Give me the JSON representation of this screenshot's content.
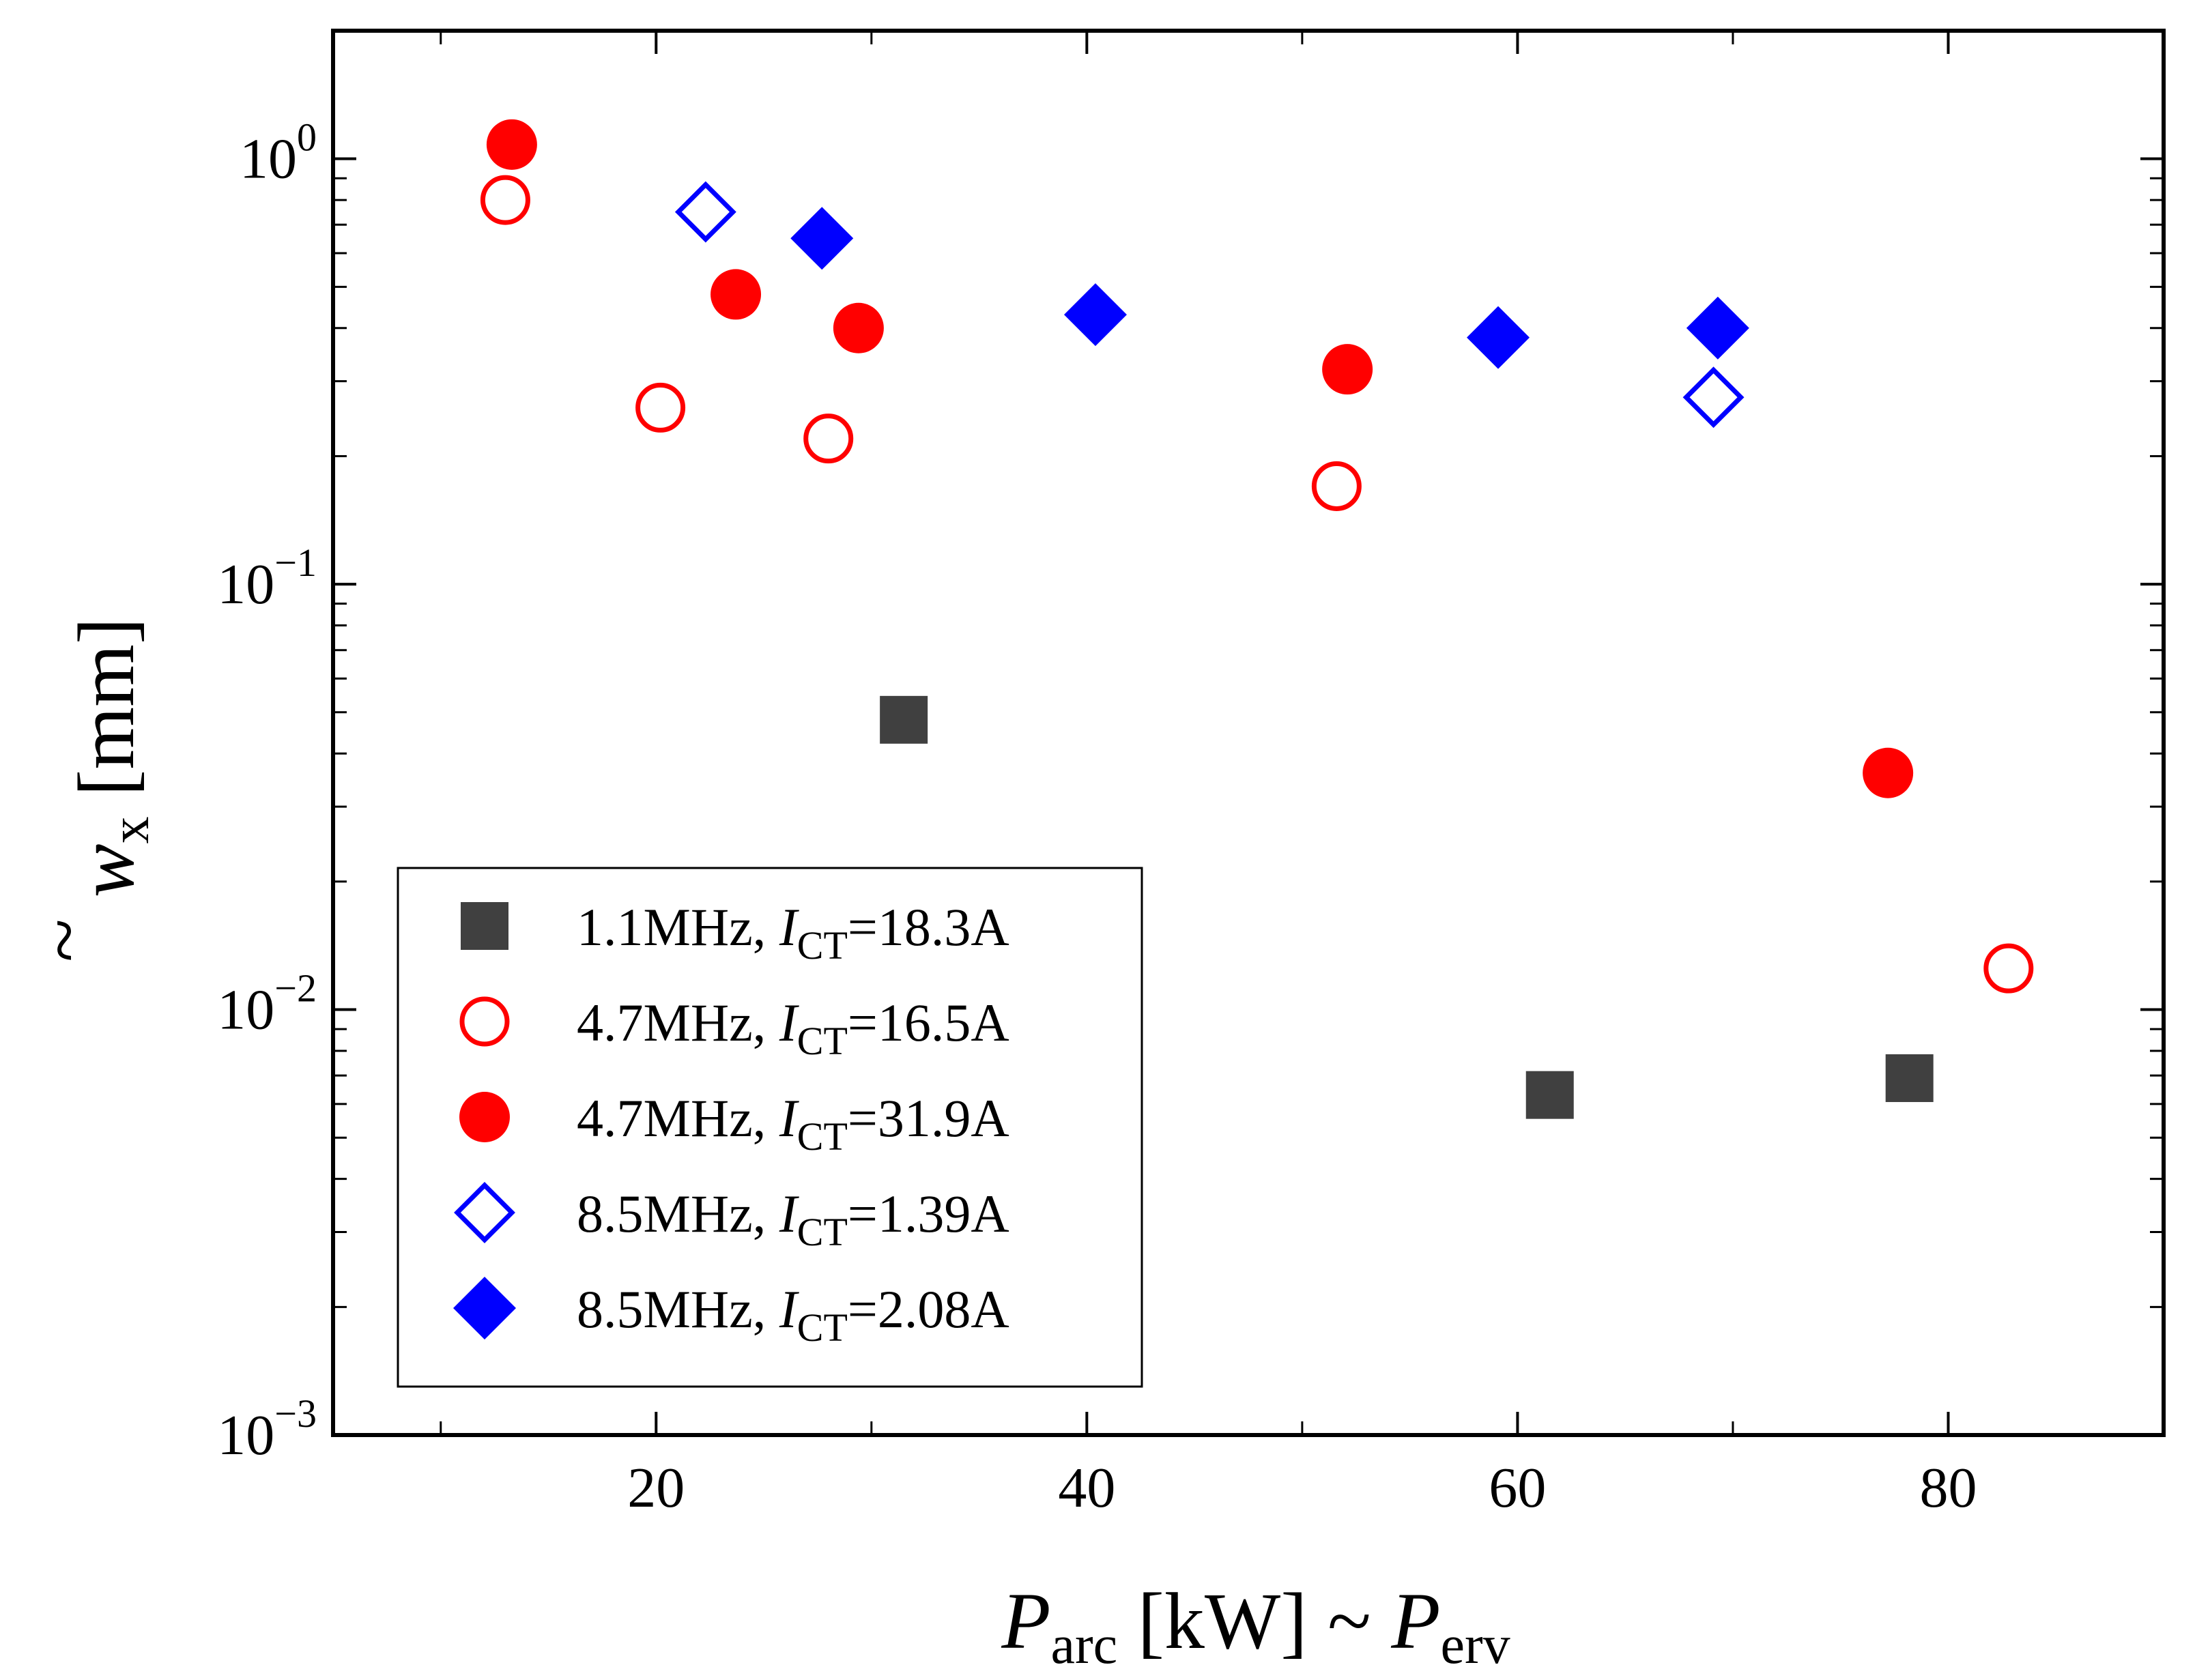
{
  "chart_data": {
    "type": "scatter",
    "title": "",
    "xlabel": {
      "main": "P",
      "sub": "arc",
      "unit": " [kW] ~ ",
      "main2": "P",
      "sub2": "erv"
    },
    "ylabel": {
      "main": "w",
      "sub": "x",
      "accent": "~",
      "unit": " [mm]"
    },
    "x_scale": "linear",
    "y_scale": "log",
    "xlim": [
      5,
      90
    ],
    "ylim": [
      0.001,
      2.0
    ],
    "x_ticks": [
      {
        "value": 20,
        "label": "20"
      },
      {
        "value": 40,
        "label": "40"
      },
      {
        "value": 60,
        "label": "60"
      },
      {
        "value": 80,
        "label": "80"
      }
    ],
    "y_ticks": [
      {
        "value": 0.001,
        "base": "10",
        "exp": "−3"
      },
      {
        "value": 0.01,
        "base": "10",
        "exp": "−2"
      },
      {
        "value": 0.1,
        "base": "10",
        "exp": "−1"
      },
      {
        "value": 1,
        "base": "10",
        "exp": "0"
      }
    ],
    "grid": false,
    "legend_position": "bottom-left",
    "series": [
      {
        "name": "1.1MHz, I_CT=18.3A",
        "label_prefix": "1.1MHz, ",
        "label_var": "I",
        "label_sub": "CT",
        "label_suffix": "=18.3A",
        "marker": "square",
        "filled": true,
        "color": "#404040",
        "points": [
          [
            31.5,
            0.048
          ],
          [
            61.5,
            0.0063
          ],
          [
            78.2,
            0.0069
          ]
        ]
      },
      {
        "name": "4.7MHz, I_CT=16.5A",
        "label_prefix": "4.7MHz, ",
        "label_var": "I",
        "label_sub": "CT",
        "label_suffix": "=16.5A",
        "marker": "circle",
        "filled": false,
        "color": "#ff0000",
        "points": [
          [
            13.0,
            0.8
          ],
          [
            20.2,
            0.26
          ],
          [
            28.0,
            0.22
          ],
          [
            51.6,
            0.17
          ],
          [
            82.8,
            0.0125
          ]
        ]
      },
      {
        "name": "4.7MHz, I_CT=31.9A",
        "label_prefix": "4.7MHz, ",
        "label_var": "I",
        "label_sub": "CT",
        "label_suffix": "=31.9A",
        "marker": "circle",
        "filled": true,
        "color": "#ff0000",
        "points": [
          [
            13.3,
            1.08
          ],
          [
            23.7,
            0.48
          ],
          [
            29.4,
            0.4
          ],
          [
            52.1,
            0.32
          ],
          [
            77.2,
            0.036
          ]
        ]
      },
      {
        "name": "8.5MHz, I_CT=1.39A",
        "label_prefix": "8.5MHz, ",
        "label_var": "I",
        "label_sub": "CT",
        "label_suffix": "=1.39A",
        "marker": "diamond",
        "filled": false,
        "color": "#0000ff",
        "points": [
          [
            22.3,
            0.75
          ],
          [
            69.1,
            0.275
          ]
        ]
      },
      {
        "name": "8.5MHz, I_CT=2.08A",
        "label_prefix": "8.5MHz, ",
        "label_var": "I",
        "label_sub": "CT",
        "label_suffix": "=2.08A",
        "marker": "diamond",
        "filled": true,
        "color": "#0000ff",
        "points": [
          [
            27.7,
            0.65
          ],
          [
            40.4,
            0.43
          ],
          [
            59.1,
            0.38
          ],
          [
            69.3,
            0.4
          ]
        ]
      }
    ]
  }
}
